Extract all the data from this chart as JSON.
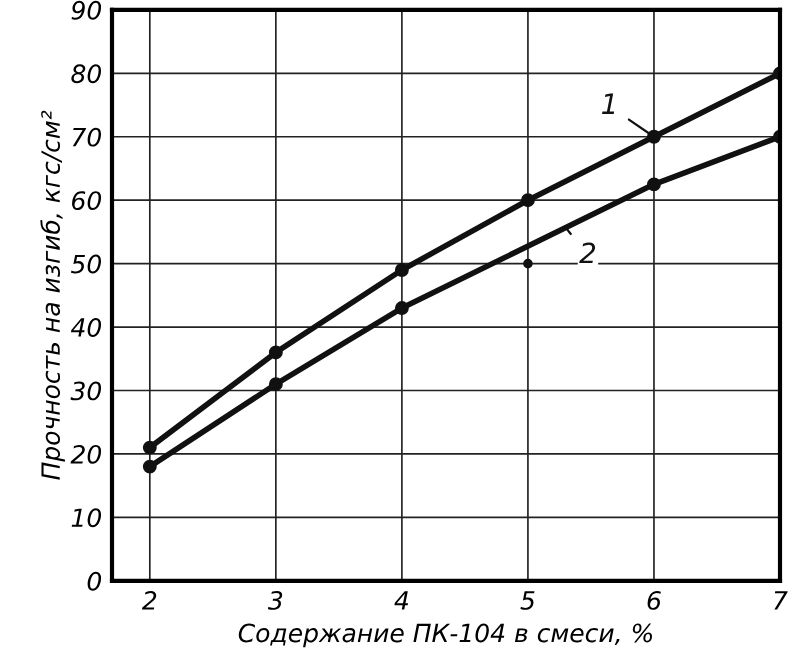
{
  "chart_data": {
    "type": "line",
    "xlabel": "Содержание ПК-104 в смеси, %",
    "ylabel": "Прочность на изгиб, кгс/см²",
    "xlim": [
      1.7,
      7
    ],
    "ylim": [
      0,
      90
    ],
    "xticks": [
      2,
      3,
      4,
      5,
      6,
      7
    ],
    "yticks": [
      0,
      10,
      20,
      30,
      40,
      50,
      60,
      70,
      80,
      90
    ],
    "grid": true,
    "marker": "circle",
    "line_style": "solid",
    "series": [
      {
        "name": "1",
        "color": "#111111",
        "x": [
          2,
          3,
          4,
          5,
          6,
          7
        ],
        "values": [
          21,
          36,
          49,
          60,
          70,
          80
        ]
      },
      {
        "name": "2",
        "color": "#111111",
        "x": [
          2,
          3,
          4,
          6,
          7
        ],
        "values": [
          18,
          31,
          43,
          62.5,
          70
        ]
      },
      {
        "type": "scatter",
        "color": "#111111",
        "x": [
          5
        ],
        "values": [
          50
        ]
      }
    ]
  }
}
